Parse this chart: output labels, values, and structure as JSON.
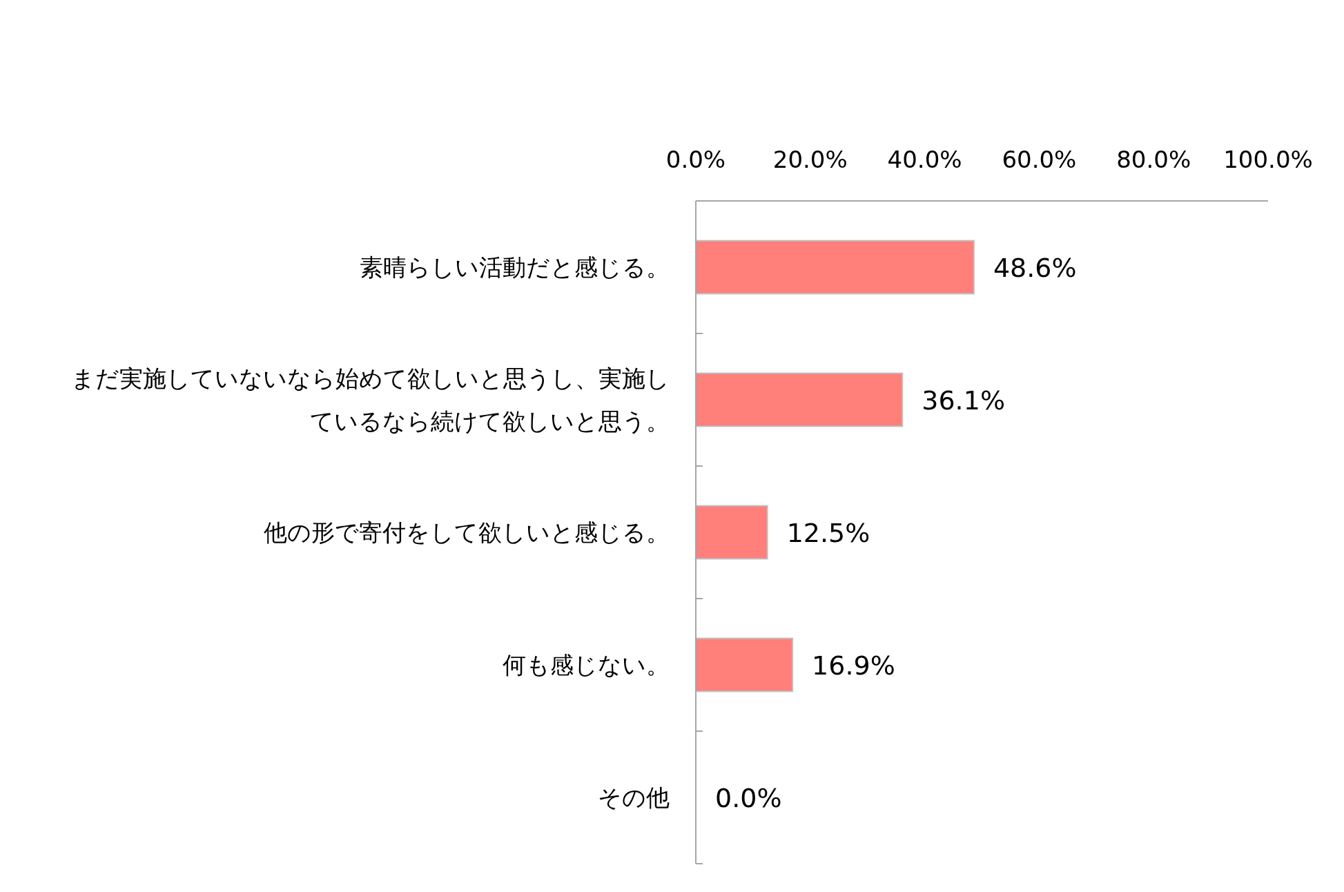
{
  "chart_data": {
    "type": "bar",
    "orientation": "horizontal",
    "categories": [
      "素晴らしい活動だと感じる。",
      "まだ実施していないなら始めて欲しいと思うし、実施しているなら続けて欲しいと思う。",
      "他の形で寄付をして欲しいと感じる。",
      "何も感じない。",
      "その他"
    ],
    "values": [
      48.6,
      36.1,
      12.5,
      16.9,
      0.0
    ],
    "value_labels": [
      "48.6%",
      "36.1%",
      "12.5%",
      "16.9%",
      "0.0%"
    ],
    "color": "#ff7f7b",
    "xlim": [
      0,
      100
    ],
    "xticks": [
      {
        "value": 0,
        "label": "0.0%"
      },
      {
        "value": 20,
        "label": "20.0%"
      },
      {
        "value": 40,
        "label": "40.0%"
      },
      {
        "value": 60,
        "label": "60.0%"
      },
      {
        "value": 80,
        "label": "80.0%"
      },
      {
        "value": 100,
        "label": "100.0%"
      }
    ],
    "grid": false
  }
}
